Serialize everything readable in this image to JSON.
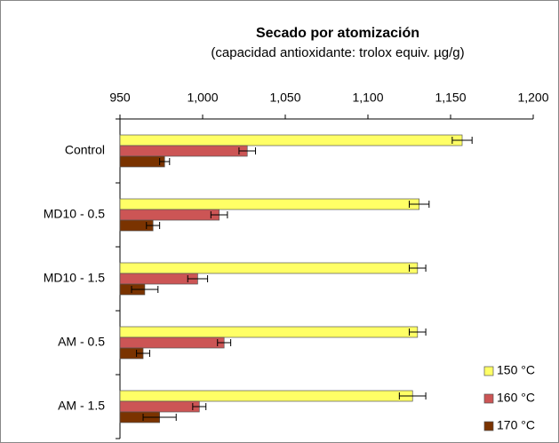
{
  "chart_data": {
    "type": "hbar",
    "title": "Secado por atomización",
    "subtitle": "(capacidad antioxidante: trolox equiv. µg/g)",
    "categories": [
      "Control",
      "MD10 - 0.5",
      "MD10 - 1.5",
      "AM - 0.5",
      "AM - 1.5"
    ],
    "series": [
      {
        "name": "150 °C",
        "color": "#ffff66",
        "values": [
          1157,
          1131,
          1130,
          1130,
          1127
        ],
        "errors": [
          6,
          6,
          5,
          5,
          8
        ]
      },
      {
        "name": "160 °C",
        "color": "#cc5555",
        "values": [
          1027,
          1010,
          997,
          1013,
          998
        ],
        "errors": [
          5,
          5,
          6,
          4,
          4
        ]
      },
      {
        "name": "170 °C",
        "color": "#7a3300",
        "values": [
          977,
          970,
          965,
          964,
          974
        ],
        "errors": [
          3,
          4,
          8,
          4,
          10
        ]
      }
    ],
    "xlim": [
      950,
      1200
    ],
    "xticks": [
      950,
      {
        "value": 1000,
        "label": "1,000"
      },
      {
        "value": 1050,
        "label": "1,050"
      },
      {
        "value": 1100,
        "label": "1,100"
      },
      {
        "value": 1150,
        "label": "1,150"
      },
      {
        "value": 1200,
        "label": "1,200"
      }
    ],
    "legend": "lower right"
  }
}
